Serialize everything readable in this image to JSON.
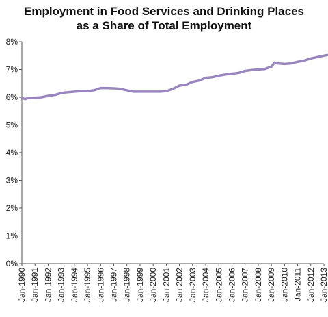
{
  "chart_data": {
    "type": "line",
    "title_lines": [
      "Employment in Food Services and Drinking Places",
      "as a Share of Total Employment"
    ],
    "xlabel": "",
    "ylabel": "",
    "x_ticks": [
      "Jan-1990",
      "Jan-1991",
      "Jan-1992",
      "Jan-1993",
      "Jan-1994",
      "Jan-1995",
      "Jan-1996",
      "Jan-1997",
      "Jan-1998",
      "Jan-1999",
      "Jan-2000",
      "Jan-2001",
      "Jan-2002",
      "Jan-2003",
      "Jan-2004",
      "Jan-2005",
      "Jan-2006",
      "Jan-2007",
      "Jan-2008",
      "Jan-2009",
      "Jan-2010",
      "Jan-2011",
      "Jan-2012",
      "Jan-2013"
    ],
    "y_ticks": [
      "0%",
      "1%",
      "2%",
      "3%",
      "4%",
      "5%",
      "6%",
      "7%",
      "8%"
    ],
    "ylim": [
      0,
      8
    ],
    "xlim": [
      1990,
      2013
    ],
    "grid": false,
    "legend": "none",
    "line_color": "#9a86bf",
    "series": [
      {
        "x": [
          1990.0,
          1990.25,
          1990.5,
          1991.0,
          1991.5,
          1992.0,
          1992.5,
          1993.0,
          1993.5,
          1994.0,
          1994.5,
          1995.0,
          1995.5,
          1996.0,
          1996.5,
          1997.0,
          1997.5,
          1998.0,
          1998.5,
          1999.0,
          1999.5,
          2000.0,
          2000.5,
          2001.0,
          2001.5,
          2002.0,
          2002.5,
          2003.0,
          2003.5,
          2004.0,
          2004.5,
          2005.0,
          2005.5,
          2006.0,
          2006.5,
          2007.0,
          2007.5,
          2008.0,
          2008.5,
          2009.0,
          2009.25,
          2009.5,
          2010.0,
          2010.5,
          2011.0,
          2011.5,
          2012.0,
          2012.5,
          2013.0,
          2013.25
        ],
        "values": [
          5.97,
          5.93,
          5.98,
          5.98,
          6.0,
          6.05,
          6.08,
          6.15,
          6.18,
          6.2,
          6.22,
          6.22,
          6.25,
          6.33,
          6.33,
          6.32,
          6.3,
          6.25,
          6.2,
          6.2,
          6.2,
          6.2,
          6.2,
          6.22,
          6.3,
          6.42,
          6.45,
          6.55,
          6.6,
          6.7,
          6.72,
          6.78,
          6.82,
          6.85,
          6.88,
          6.95,
          6.98,
          7.0,
          7.02,
          7.1,
          7.25,
          7.22,
          7.2,
          7.22,
          7.28,
          7.32,
          7.4,
          7.45,
          7.5,
          7.52
        ]
      }
    ]
  }
}
